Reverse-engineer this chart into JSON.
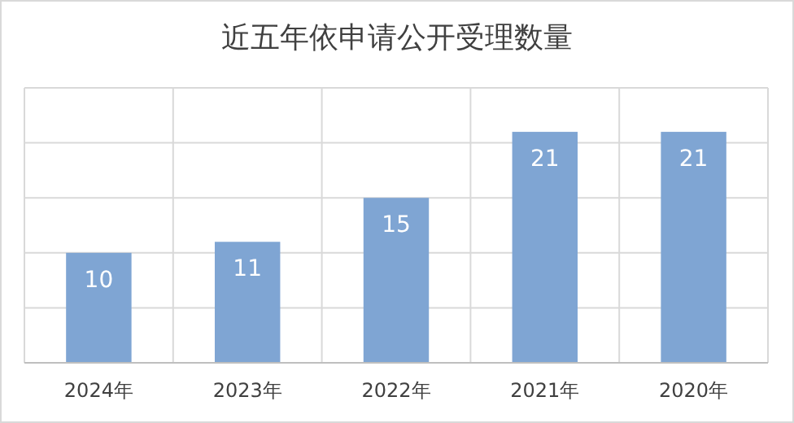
{
  "chart_data": {
    "type": "bar",
    "title": "近五年依申请公开受理数量",
    "categories": [
      "2024年",
      "2023年",
      "2022年",
      "2021年",
      "2020年"
    ],
    "values": [
      10,
      11,
      15,
      21,
      21
    ],
    "color": "#7fa5d3",
    "ylim": [
      0,
      25
    ],
    "yticks": [
      {
        "value": 0,
        "label": null
      },
      {
        "value": 5,
        "label": null
      },
      {
        "value": 10,
        "label": null
      },
      {
        "value": 15,
        "label": null
      },
      {
        "value": 20,
        "label": null
      },
      {
        "value": 25,
        "label": null
      }
    ],
    "grid": true,
    "tick_labels": "x",
    "data_labels": true
  }
}
